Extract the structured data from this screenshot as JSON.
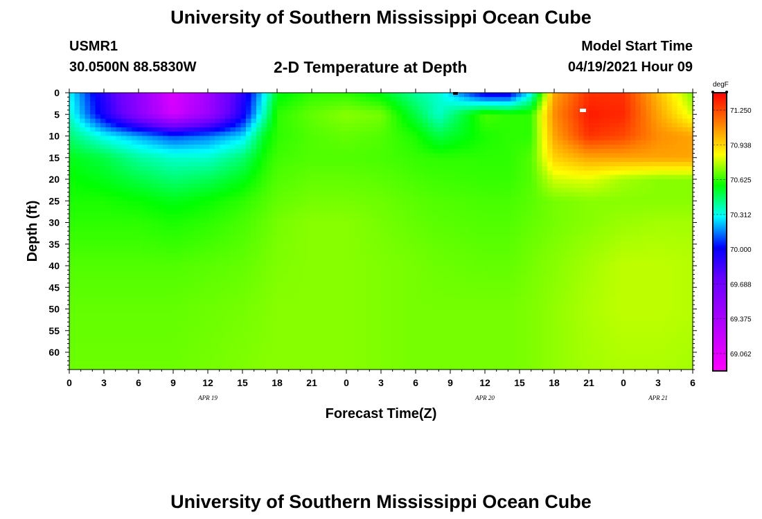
{
  "header": {
    "title_top": "University of Southern Mississippi Ocean Cube",
    "title_bottom": "University of Southern Mississippi Ocean Cube",
    "station": "USMR1",
    "location": "30.0500N  88.5830W",
    "plot_title": "2-D Temperature at Depth",
    "model_start_label": "Model Start Time",
    "model_start_value": "04/19/2021 Hour 09"
  },
  "chart_data": {
    "type": "heatmap",
    "title": "2-D Temperature at Depth",
    "xlabel": "Forecast Time(Z)",
    "ylabel": "Depth (ft)",
    "x_tick_labels": [
      "0",
      "3",
      "6",
      "9",
      "12",
      "15",
      "18",
      "21",
      "0",
      "3",
      "6",
      "9",
      "12",
      "15",
      "18",
      "21",
      "0",
      "3",
      "6"
    ],
    "x_range_hours": [
      0,
      54
    ],
    "date_labels": [
      {
        "text": "APR  19",
        "hour": 12
      },
      {
        "text": "APR  20",
        "hour": 36
      },
      {
        "text": "APR  21",
        "hour": 51
      }
    ],
    "y_ticks": [
      0,
      5,
      10,
      15,
      20,
      25,
      30,
      35,
      40,
      45,
      50,
      55,
      60
    ],
    "y_range": [
      0,
      64
    ],
    "y_inverted": true,
    "colorbar": {
      "unit": "degF",
      "range": [
        68.906,
        71.406
      ],
      "tick_values": [
        69.062,
        69.375,
        69.688,
        70.0,
        70.312,
        70.625,
        70.938,
        71.25
      ],
      "tick_labels": [
        "69.062",
        "69.375",
        "69.688",
        "70.000",
        "70.312",
        "70.625",
        "70.938",
        "71.250"
      ],
      "colors": [
        "#ff00ff",
        "#cc00ff",
        "#9900ff",
        "#6600ff",
        "#0000ff",
        "#00ffff",
        "#00ff00",
        "#ffff00",
        "#ff8000",
        "#ff0000"
      ]
    },
    "field_description_points": {
      "hours": [
        0,
        3,
        6,
        9,
        12,
        15,
        17,
        18,
        21,
        24,
        27,
        30,
        32,
        36,
        38,
        40,
        42,
        45,
        48,
        51,
        54
      ],
      "depths": [
        0,
        5,
        10,
        15,
        20,
        25,
        30,
        40,
        50,
        64
      ],
      "values_degF": [
        [
          70.3,
          69.9,
          69.5,
          69.1,
          69.4,
          69.9,
          70.3,
          70.55,
          70.62,
          70.62,
          70.55,
          70.4,
          70.35,
          69.95,
          69.95,
          70.3,
          71.05,
          71.3,
          71.3,
          71.0,
          70.7
        ],
        [
          70.35,
          69.95,
          69.55,
          69.15,
          69.45,
          69.95,
          70.4,
          70.62,
          70.68,
          70.72,
          70.7,
          70.5,
          70.35,
          70.65,
          70.62,
          70.62,
          71.1,
          71.35,
          71.32,
          71.05,
          70.8
        ],
        [
          70.45,
          70.3,
          70.2,
          70.1,
          70.15,
          70.25,
          70.55,
          70.62,
          70.66,
          70.68,
          70.66,
          70.6,
          70.5,
          70.6,
          70.62,
          70.62,
          71.05,
          71.3,
          71.25,
          71.1,
          71.05
        ],
        [
          70.55,
          70.5,
          70.4,
          70.35,
          70.35,
          70.45,
          70.6,
          70.64,
          70.66,
          70.66,
          70.65,
          70.63,
          70.62,
          70.62,
          70.62,
          70.66,
          70.95,
          71.05,
          71.05,
          71.05,
          71.05
        ],
        [
          70.58,
          70.55,
          70.5,
          70.45,
          70.48,
          70.55,
          70.63,
          70.66,
          70.68,
          70.68,
          70.67,
          70.65,
          70.64,
          70.63,
          70.63,
          70.66,
          70.8,
          70.82,
          70.75,
          70.72,
          70.72
        ],
        [
          70.6,
          70.6,
          70.58,
          70.55,
          70.58,
          70.62,
          70.66,
          70.68,
          70.7,
          70.7,
          70.69,
          70.67,
          70.66,
          70.65,
          70.65,
          70.67,
          70.7,
          70.72,
          70.72,
          70.72,
          70.72
        ],
        [
          70.62,
          70.62,
          70.62,
          70.6,
          70.62,
          70.65,
          70.68,
          70.7,
          70.72,
          70.72,
          70.7,
          70.68,
          70.67,
          70.66,
          70.66,
          70.68,
          70.7,
          70.72,
          70.74,
          70.75,
          70.75
        ],
        [
          70.66,
          70.66,
          70.66,
          70.66,
          70.67,
          70.68,
          70.7,
          70.71,
          70.72,
          70.72,
          70.71,
          70.7,
          70.69,
          70.68,
          70.68,
          70.7,
          70.72,
          70.75,
          70.78,
          70.78,
          70.77
        ],
        [
          70.68,
          70.68,
          70.68,
          70.68,
          70.69,
          70.7,
          70.71,
          70.72,
          70.72,
          70.72,
          70.71,
          70.7,
          70.7,
          70.7,
          70.7,
          70.71,
          70.73,
          70.76,
          70.78,
          70.78,
          70.77
        ],
        [
          70.69,
          70.69,
          70.69,
          70.69,
          70.7,
          70.71,
          70.72,
          70.72,
          70.72,
          70.72,
          70.71,
          70.7,
          70.7,
          70.7,
          70.7,
          70.71,
          70.73,
          70.75,
          70.76,
          70.76,
          70.75
        ]
      ]
    }
  }
}
